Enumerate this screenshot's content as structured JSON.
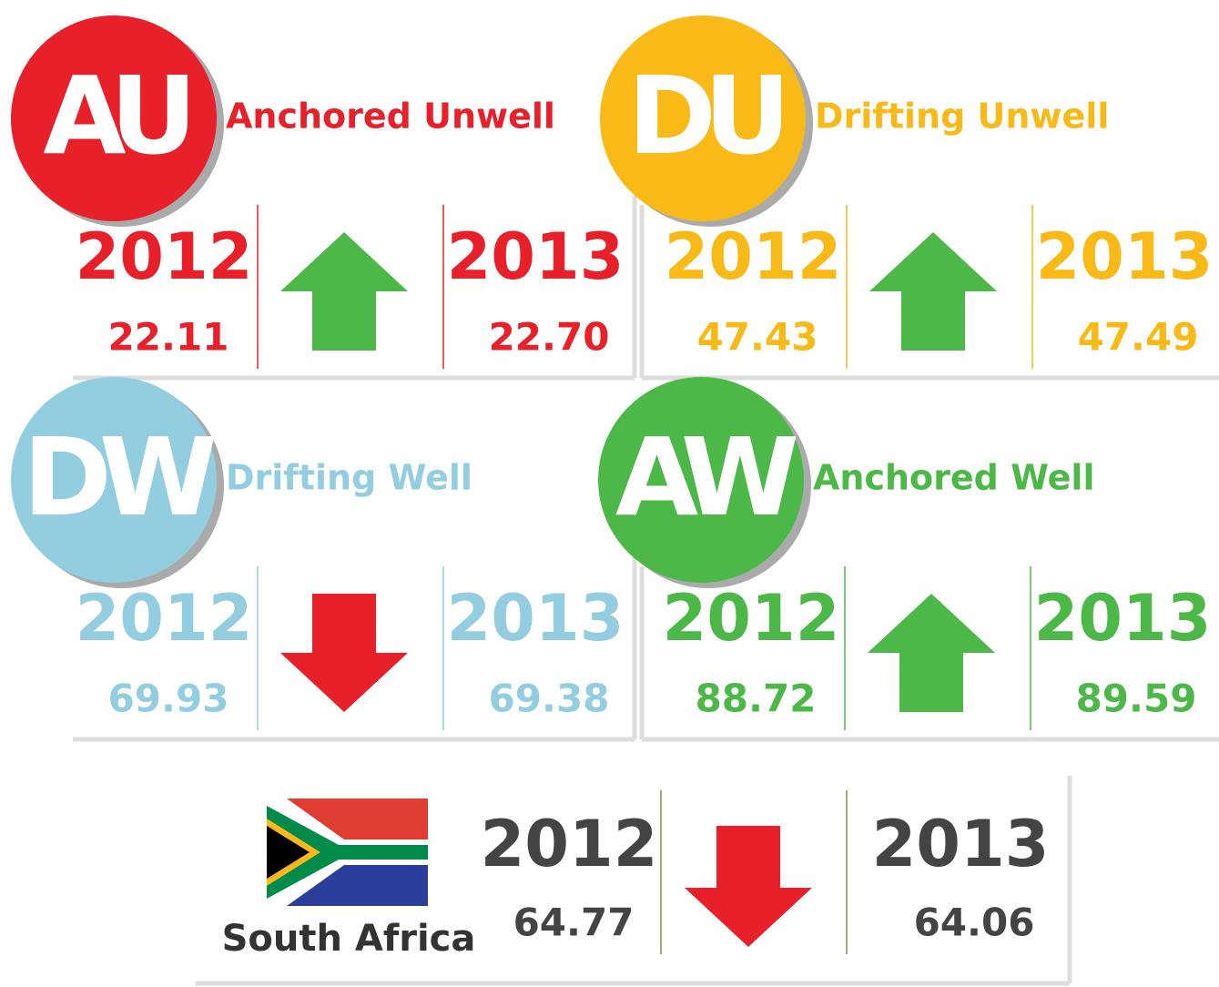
{
  "panels": [
    {
      "abbr": "AU",
      "name": "Anchored Unwell",
      "color": "#e8202a",
      "trend": "up",
      "year1": "2012",
      "value1": "22.11",
      "year2": "2013",
      "value2": "22.70"
    },
    {
      "abbr": "DU",
      "name": "Drifting Unwell",
      "color": "#f9b916",
      "trend": "up",
      "year1": "2012",
      "value1": "47.43",
      "year2": "2013",
      "value2": "47.49"
    },
    {
      "abbr": "DW",
      "name": "Drifting Well",
      "color": "#93cde0",
      "trend": "down",
      "year1": "2012",
      "value1": "69.93",
      "year2": "2013",
      "value2": "69.38"
    },
    {
      "abbr": "AW",
      "name": "Anchored Well",
      "color": "#4cb848",
      "trend": "up",
      "year1": "2012",
      "value1": "88.72",
      "year2": "2013",
      "value2": "89.59"
    }
  ],
  "country": {
    "label": "South Africa",
    "color": "#444444",
    "trend": "down",
    "year1": "2012",
    "value1": "64.77",
    "year2": "2013",
    "value2": "64.06"
  }
}
